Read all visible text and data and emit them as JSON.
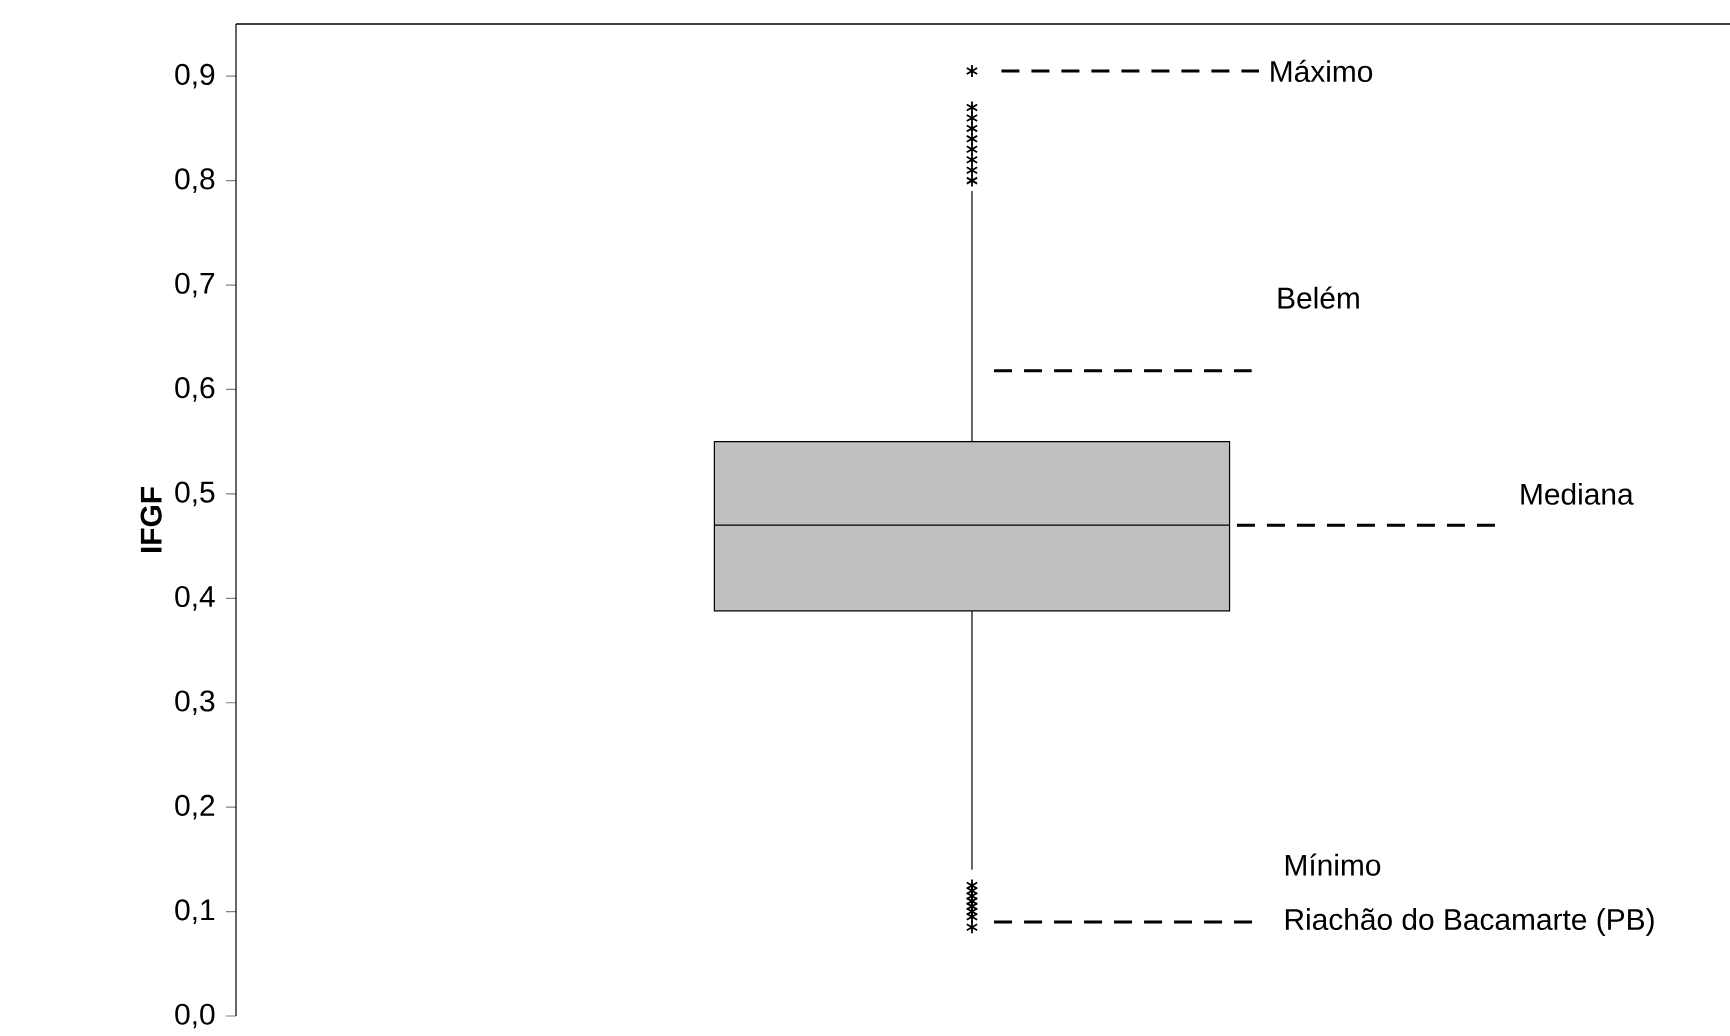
{
  "chart_data": {
    "type": "box",
    "ylabel": "IFGF",
    "categories": [
      null
    ],
    "boxes": [
      {
        "low": 0.14,
        "q1": 0.388,
        "median": 0.47,
        "q3": 0.55,
        "high": 0.79,
        "outliers": [
          0.8,
          0.81,
          0.82,
          0.83,
          0.84,
          0.85,
          0.86,
          0.87,
          0.905,
          0.085,
          0.095,
          0.1,
          0.105,
          0.11,
          0.115,
          0.12,
          0.125
        ]
      }
    ],
    "color": "#c0c0c0",
    "marker": "star",
    "ylim": [
      0,
      0.95
    ],
    "yticks": [
      {
        "value": 0,
        "label": "0,0"
      },
      {
        "value": 0.1,
        "label": "0,1"
      },
      {
        "value": 0.2,
        "label": "0,2"
      },
      {
        "value": 0.3,
        "label": "0,3"
      },
      {
        "value": 0.4,
        "label": "0,4"
      },
      {
        "value": 0.5,
        "label": "0,5"
      },
      {
        "value": 0.6,
        "label": "0,6"
      },
      {
        "value": 0.7,
        "label": "0,7"
      },
      {
        "value": 0.8,
        "label": "0,8"
      },
      {
        "value": 0.9,
        "label": "0,9"
      }
    ],
    "grid": false,
    "ref_lines": [
      {
        "axis": "y",
        "value": 0.905,
        "label": "Máximo",
        "line_style": "dashed"
      },
      {
        "axis": "y",
        "value": 0.618,
        "label": "Belém",
        "line_style": "dashed"
      },
      {
        "axis": "y",
        "value": 0.47,
        "label": "Mediana",
        "line_style": "dashed"
      },
      {
        "axis": "y",
        "value": 0.09,
        "label": "Riachão do Bacamarte (PB)",
        "line_style": "dashed"
      }
    ],
    "annotations": [
      "Mínimo"
    ]
  }
}
